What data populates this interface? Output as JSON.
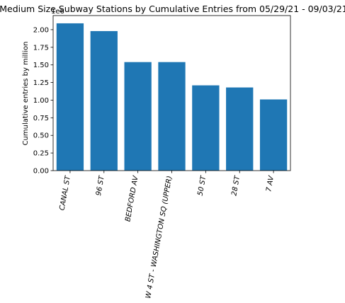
{
  "chart_data": {
    "type": "bar",
    "title": "Medium Size Subway Stations by Cumulative Entries from 05/29/21 - 09/03/21",
    "ylabel": "Cumulative entries by million",
    "xlabel": "",
    "offset_text": "1e6",
    "categories": [
      "CANAL ST",
      "96 ST",
      "BEDFORD AV",
      "W 4 ST - WASHINGTON SQ (UPPER)",
      "50 ST",
      "28 ST",
      "7 AV"
    ],
    "values": [
      2.09,
      1.98,
      1.54,
      1.54,
      1.21,
      1.18,
      1.01
    ],
    "ylim": [
      0,
      2.2
    ],
    "yticks": [
      0.0,
      0.25,
      0.5,
      0.75,
      1.0,
      1.25,
      1.5,
      1.75,
      2.0
    ],
    "ytick_labels": [
      "0.00",
      "0.25",
      "0.50",
      "0.75",
      "1.00",
      "1.25",
      "1.50",
      "1.75",
      "2.00"
    ],
    "bar_color": "#1f77b4",
    "grid": false,
    "legend": "none"
  }
}
